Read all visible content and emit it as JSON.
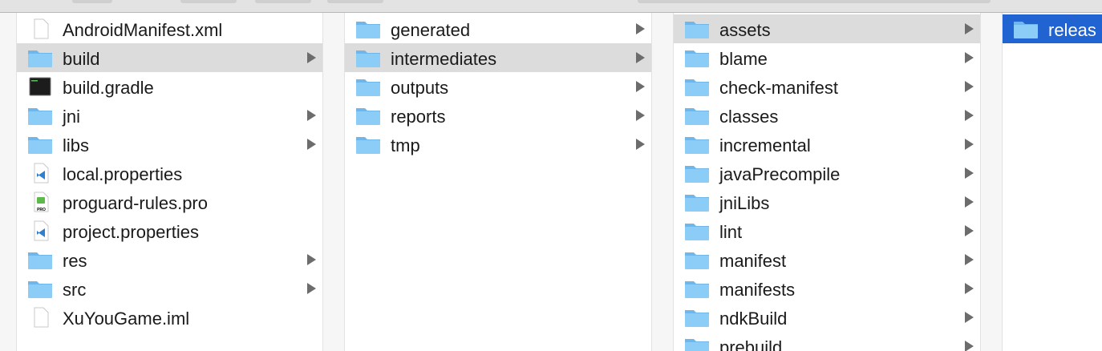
{
  "columns": [
    {
      "items": [
        {
          "name": "AndroidManifest.xml",
          "icon": "xml-file-icon",
          "folder": false
        },
        {
          "name": "build",
          "icon": "folder-icon",
          "folder": true,
          "state": "selected"
        },
        {
          "name": "build.gradle",
          "icon": "terminal-file-icon",
          "folder": false
        },
        {
          "name": "jni",
          "icon": "folder-icon",
          "folder": true
        },
        {
          "name": "libs",
          "icon": "folder-icon",
          "folder": true
        },
        {
          "name": "local.properties",
          "icon": "vscode-file-icon",
          "folder": false
        },
        {
          "name": "proguard-rules.pro",
          "icon": "qt-pro-file-icon",
          "folder": false,
          "badge": "PRO"
        },
        {
          "name": "project.properties",
          "icon": "vscode-file-icon",
          "folder": false
        },
        {
          "name": "res",
          "icon": "folder-icon",
          "folder": true
        },
        {
          "name": "src",
          "icon": "folder-icon",
          "folder": true
        },
        {
          "name": "XuYouGame.iml",
          "icon": "blank-file-icon",
          "folder": false
        }
      ]
    },
    {
      "items": [
        {
          "name": "generated",
          "icon": "folder-icon",
          "folder": true
        },
        {
          "name": "intermediates",
          "icon": "folder-icon",
          "folder": true,
          "state": "selected"
        },
        {
          "name": "outputs",
          "icon": "folder-icon",
          "folder": true
        },
        {
          "name": "reports",
          "icon": "folder-icon",
          "folder": true
        },
        {
          "name": "tmp",
          "icon": "folder-icon",
          "folder": true
        }
      ]
    },
    {
      "items": [
        {
          "name": "assets",
          "icon": "folder-icon",
          "folder": true,
          "state": "selected"
        },
        {
          "name": "blame",
          "icon": "folder-icon",
          "folder": true
        },
        {
          "name": "check-manifest",
          "icon": "folder-icon",
          "folder": true
        },
        {
          "name": "classes",
          "icon": "folder-icon",
          "folder": true
        },
        {
          "name": "incremental",
          "icon": "folder-icon",
          "folder": true
        },
        {
          "name": "javaPrecompile",
          "icon": "folder-icon",
          "folder": true
        },
        {
          "name": "jniLibs",
          "icon": "folder-icon",
          "folder": true
        },
        {
          "name": "lint",
          "icon": "folder-icon",
          "folder": true
        },
        {
          "name": "manifest",
          "icon": "folder-icon",
          "folder": true
        },
        {
          "name": "manifests",
          "icon": "folder-icon",
          "folder": true
        },
        {
          "name": "ndkBuild",
          "icon": "folder-icon",
          "folder": true
        },
        {
          "name": "prebuild",
          "icon": "folder-icon",
          "folder": true
        }
      ]
    },
    {
      "items": [
        {
          "name": "releas",
          "icon": "folder-icon",
          "folder": false,
          "state": "active"
        }
      ]
    }
  ],
  "colors": {
    "selected_row": "#dcdcdc",
    "active_row": "#2163d1",
    "folder": "#7cc3f3"
  }
}
